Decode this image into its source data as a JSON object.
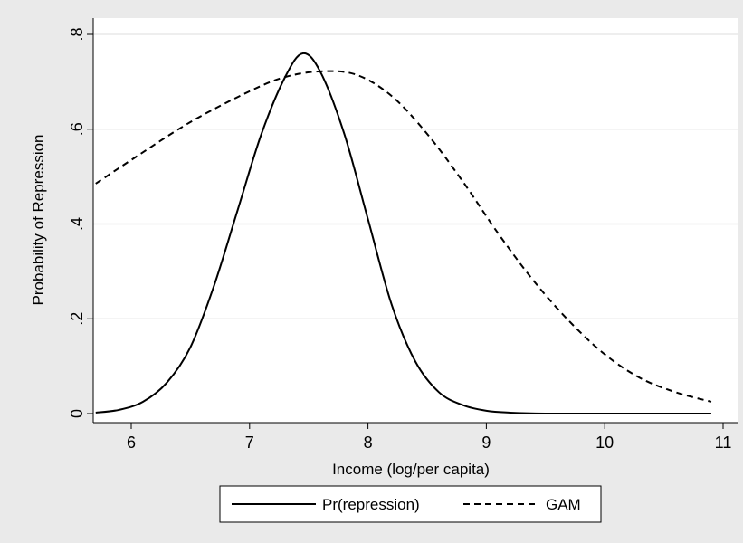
{
  "chart_data": {
    "type": "line",
    "xlabel": "Income (log/per capita)",
    "ylabel": "Probability of Repression",
    "xlim": [
      5.7,
      10.9
    ],
    "ylim": [
      0,
      0.8
    ],
    "x_ticks": [
      6,
      7,
      8,
      9,
      10,
      11
    ],
    "x_tick_labels": [
      "6",
      "7",
      "8",
      "9",
      "10",
      "11"
    ],
    "y_ticks": [
      0,
      0.2,
      0.4,
      0.6,
      0.8
    ],
    "y_tick_labels": [
      "0",
      ".2",
      ".4",
      ".6",
      ".8"
    ],
    "grid": "horizontal",
    "legend_position": "bottom",
    "series": [
      {
        "name": "Pr(repression)",
        "style": "solid",
        "color": "#000000",
        "x": [
          5.7,
          5.9,
          6.1,
          6.3,
          6.5,
          6.7,
          6.9,
          7.1,
          7.3,
          7.45,
          7.6,
          7.8,
          8.0,
          8.2,
          8.4,
          8.6,
          8.8,
          9.0,
          9.2,
          9.5,
          10.0,
          10.5,
          10.9
        ],
        "y": [
          0.002,
          0.008,
          0.025,
          0.065,
          0.14,
          0.27,
          0.43,
          0.59,
          0.71,
          0.76,
          0.72,
          0.59,
          0.41,
          0.23,
          0.11,
          0.045,
          0.018,
          0.006,
          0.002,
          0.0,
          0.0,
          0.0,
          0.0
        ]
      },
      {
        "name": "GAM",
        "style": "dashed",
        "color": "#000000",
        "x": [
          5.7,
          6.0,
          6.5,
          7.0,
          7.3,
          7.6,
          7.9,
          8.2,
          8.5,
          8.8,
          9.1,
          9.4,
          9.7,
          10.0,
          10.3,
          10.6,
          10.9
        ],
        "y": [
          0.485,
          0.535,
          0.615,
          0.68,
          0.71,
          0.722,
          0.715,
          0.67,
          0.59,
          0.49,
          0.38,
          0.28,
          0.195,
          0.125,
          0.075,
          0.045,
          0.025
        ]
      }
    ]
  }
}
